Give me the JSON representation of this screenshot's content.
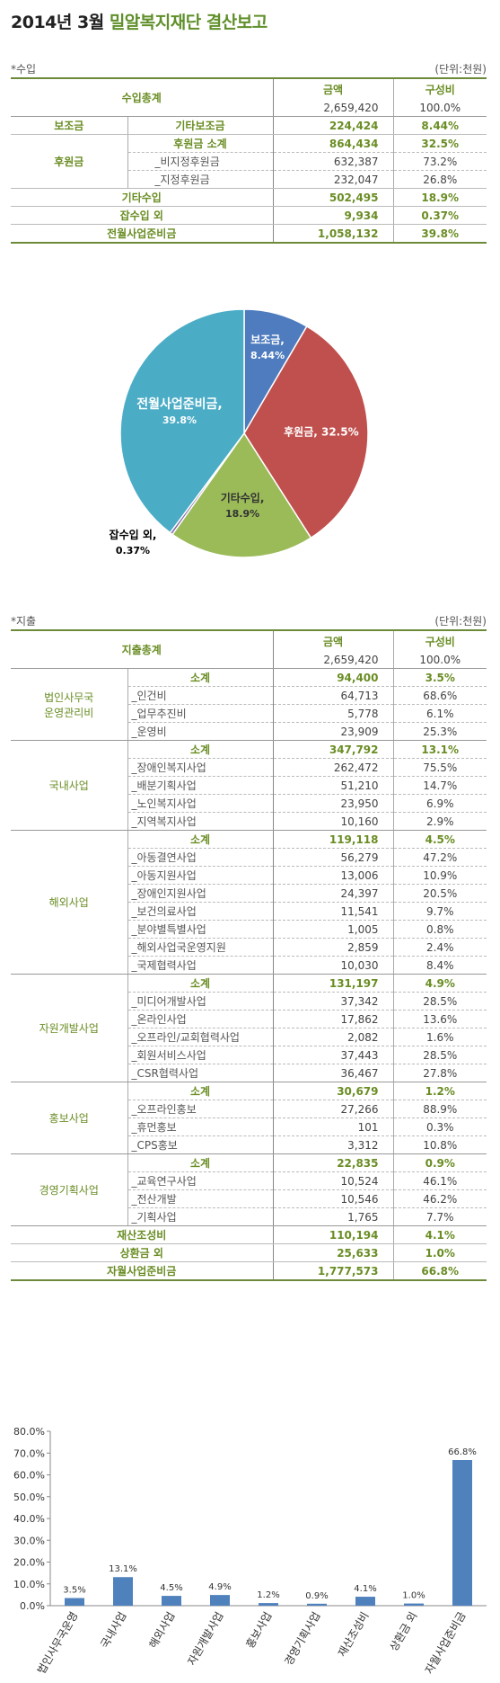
{
  "title": {
    "part1": "2014년 3월",
    "part2": "밀알복지재단 결산보고"
  },
  "income": {
    "section_label": "*수입",
    "unit": "(단위:천원)",
    "total_label": "수입총계",
    "col_amount": "금액",
    "col_ratio": "구성비",
    "total_amount": "2,659,420",
    "total_ratio": "100.0%",
    "rows": [
      {
        "cat": "보조금",
        "sub": "기타보조금",
        "amount": "224,424",
        "ratio": "8.44%"
      },
      {
        "cat": "후원금",
        "sub": "후원금 소계",
        "amount": "864,434",
        "ratio": "32.5%"
      },
      {
        "cat": "",
        "sub": "_비지정후원금",
        "amount": "632,387",
        "ratio": "73.2%"
      },
      {
        "cat": "",
        "sub": "_지정후원금",
        "amount": "232,047",
        "ratio": "26.8%"
      },
      {
        "cat": "기타수입",
        "sub": "",
        "amount": "502,495",
        "ratio": "18.9%"
      },
      {
        "cat": "잡수입 외",
        "sub": "",
        "amount": "9,934",
        "ratio": "0.37%"
      },
      {
        "cat": "전월사업준비금",
        "sub": "",
        "amount": "1,058,132",
        "ratio": "39.8%"
      }
    ]
  },
  "pie": {
    "chart_data": {
      "type": "pie",
      "slices": [
        {
          "name": "보조금",
          "value": 8.44,
          "label": "8.44%",
          "color": "#4f7cbe"
        },
        {
          "name": "후원금",
          "value": 32.5,
          "label": "32.5%",
          "color": "#c0504d"
        },
        {
          "name": "기타수입",
          "value": 18.9,
          "label": "18.9%",
          "color": "#9bbb59"
        },
        {
          "name": "잡수입 외",
          "value": 0.37,
          "label": "0.37%",
          "color": "#8064a2"
        },
        {
          "name": "전월사업준비금",
          "value": 39.8,
          "label": "39.8%",
          "color": "#4bacc6"
        }
      ]
    }
  },
  "expense": {
    "section_label": "*지출",
    "unit": "(단위:천원)",
    "total_label": "지출총계",
    "col_amount": "금액",
    "col_ratio": "구성비",
    "total_amount": "2,659,420",
    "total_ratio": "100.0%",
    "groups": [
      {
        "name": "법인사무국\n운영관리비",
        "rows": [
          {
            "sub": "소계",
            "amount": "94,400",
            "ratio": "3.5%",
            "bold": true
          },
          {
            "sub": "_인건비",
            "amount": "64,713",
            "ratio": "68.6%"
          },
          {
            "sub": "_업무추진비",
            "amount": "5,778",
            "ratio": "6.1%"
          },
          {
            "sub": "_운영비",
            "amount": "23,909",
            "ratio": "25.3%"
          }
        ]
      },
      {
        "name": "국내사업",
        "rows": [
          {
            "sub": "소계",
            "amount": "347,792",
            "ratio": "13.1%",
            "bold": true
          },
          {
            "sub": "_장애인복지사업",
            "amount": "262,472",
            "ratio": "75.5%"
          },
          {
            "sub": "_배분기획사업",
            "amount": "51,210",
            "ratio": "14.7%"
          },
          {
            "sub": "_노인복지사업",
            "amount": "23,950",
            "ratio": "6.9%"
          },
          {
            "sub": "_지역복지사업",
            "amount": "10,160",
            "ratio": "2.9%"
          }
        ]
      },
      {
        "name": "해외사업",
        "rows": [
          {
            "sub": "소계",
            "amount": "119,118",
            "ratio": "4.5%",
            "bold": true
          },
          {
            "sub": "_아동결연사업",
            "amount": "56,279",
            "ratio": "47.2%"
          },
          {
            "sub": "_아동지원사업",
            "amount": "13,006",
            "ratio": "10.9%"
          },
          {
            "sub": "_장애인지원사업",
            "amount": "24,397",
            "ratio": "20.5%"
          },
          {
            "sub": "_보건의료사업",
            "amount": "11,541",
            "ratio": "9.7%"
          },
          {
            "sub": "_분야별특별사업",
            "amount": "1,005",
            "ratio": "0.8%"
          },
          {
            "sub": "_해외사업국운영지원",
            "amount": "2,859",
            "ratio": "2.4%"
          },
          {
            "sub": "_국제협력사업",
            "amount": "10,030",
            "ratio": "8.4%"
          }
        ]
      },
      {
        "name": "자원개발사업",
        "rows": [
          {
            "sub": "소계",
            "amount": "131,197",
            "ratio": "4.9%",
            "bold": true
          },
          {
            "sub": "_미디어개발사업",
            "amount": "37,342",
            "ratio": "28.5%"
          },
          {
            "sub": "_온라인사업",
            "amount": "17,862",
            "ratio": "13.6%"
          },
          {
            "sub": "_오프라인/교회협력사업",
            "amount": "2,082",
            "ratio": "1.6%"
          },
          {
            "sub": "_회원서비스사업",
            "amount": "37,443",
            "ratio": "28.5%"
          },
          {
            "sub": "_CSR협력사업",
            "amount": "36,467",
            "ratio": "27.8%"
          }
        ]
      },
      {
        "name": "홍보사업",
        "rows": [
          {
            "sub": "소계",
            "amount": "30,679",
            "ratio": "1.2%",
            "bold": true
          },
          {
            "sub": "_오프라인홍보",
            "amount": "27,266",
            "ratio": "88.9%"
          },
          {
            "sub": "_휴먼홍보",
            "amount": "101",
            "ratio": "0.3%"
          },
          {
            "sub": "_CPS홍보",
            "amount": "3,312",
            "ratio": "10.8%"
          }
        ]
      },
      {
        "name": "경영기획사업",
        "rows": [
          {
            "sub": "소계",
            "amount": "22,835",
            "ratio": "0.9%",
            "bold": true
          },
          {
            "sub": "_교육연구사업",
            "amount": "10,524",
            "ratio": "46.1%"
          },
          {
            "sub": "_전산개발",
            "amount": "10,546",
            "ratio": "46.2%"
          },
          {
            "sub": "_기획사업",
            "amount": "1,765",
            "ratio": "7.7%"
          }
        ]
      }
    ],
    "tail_rows": [
      {
        "name": "재산조성비",
        "amount": "110,194",
        "ratio": "4.1%"
      },
      {
        "name": "상환금 외",
        "amount": "25,633",
        "ratio": "1.0%"
      },
      {
        "name": "자월사업준비금",
        "amount": "1,777,573",
        "ratio": "66.8%"
      }
    ]
  },
  "bar": {
    "chart_data": {
      "type": "bar",
      "categories": [
        "법인사무국운영",
        "국내사업",
        "해외사업",
        "자원개발사업",
        "홍보사업",
        "경영기획사업",
        "재산조성비",
        "상환금 외",
        "자월사업준비금"
      ],
      "values": [
        3.5,
        13.1,
        4.5,
        4.9,
        1.2,
        0.9,
        4.1,
        1.0,
        66.8
      ],
      "data_labels": [
        "3.5%",
        "13.1%",
        "4.5%",
        "4.9%",
        "1.2%",
        "0.9%",
        "4.1%",
        "1.0%",
        "66.8%"
      ],
      "ylim": [
        0,
        80
      ],
      "yticks": [
        "0.0%",
        "10.0%",
        "20.0%",
        "30.0%",
        "40.0%",
        "50.0%",
        "60.0%",
        "70.0%",
        "80.0%"
      ],
      "bar_color": "#4f81bd"
    }
  }
}
